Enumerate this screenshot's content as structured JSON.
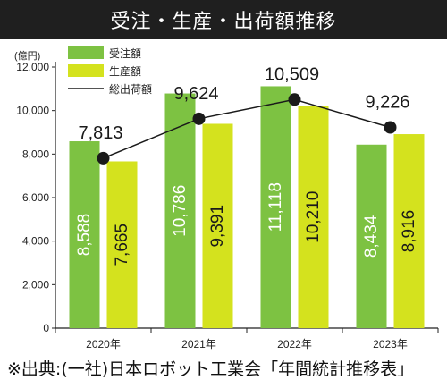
{
  "title": "受注・生産・出荷額推移",
  "source_note": "※出典:(一社)日本ロボット工業会「年間統計推移表」",
  "colors": {
    "orders": "#7dc242",
    "production": "#d4e21e",
    "shipments": "#1a1a1a",
    "title_bg": "#1f1f1f"
  },
  "chart_data": {
    "type": "bar",
    "unit_label": "(億円)",
    "categories": [
      "2020年",
      "2021年",
      "2022年",
      "2023年"
    ],
    "ylim": [
      0,
      12000
    ],
    "yticks": [
      0,
      2000,
      4000,
      6000,
      8000,
      10000,
      12000
    ],
    "ytick_labels": [
      "0",
      "2,000",
      "4,000",
      "6,000",
      "8,000",
      "10,000",
      "12,000"
    ],
    "grid": false,
    "legend_position": "top-left",
    "series": [
      {
        "name": "受注額",
        "kind": "bar",
        "values": [
          8588,
          10786,
          11118,
          8434
        ],
        "labels": [
          "8,588",
          "10,786",
          "11,118",
          "8,434"
        ]
      },
      {
        "name": "生産額",
        "kind": "bar",
        "values": [
          7665,
          9391,
          10210,
          8916
        ],
        "labels": [
          "7,665",
          "9,391",
          "10,210",
          "8,916"
        ]
      },
      {
        "name": "総出荷額",
        "kind": "line",
        "values": [
          7813,
          9624,
          10509,
          9226
        ],
        "labels": [
          "7,813",
          "9,624",
          "10,509",
          "9,226"
        ]
      }
    ]
  }
}
